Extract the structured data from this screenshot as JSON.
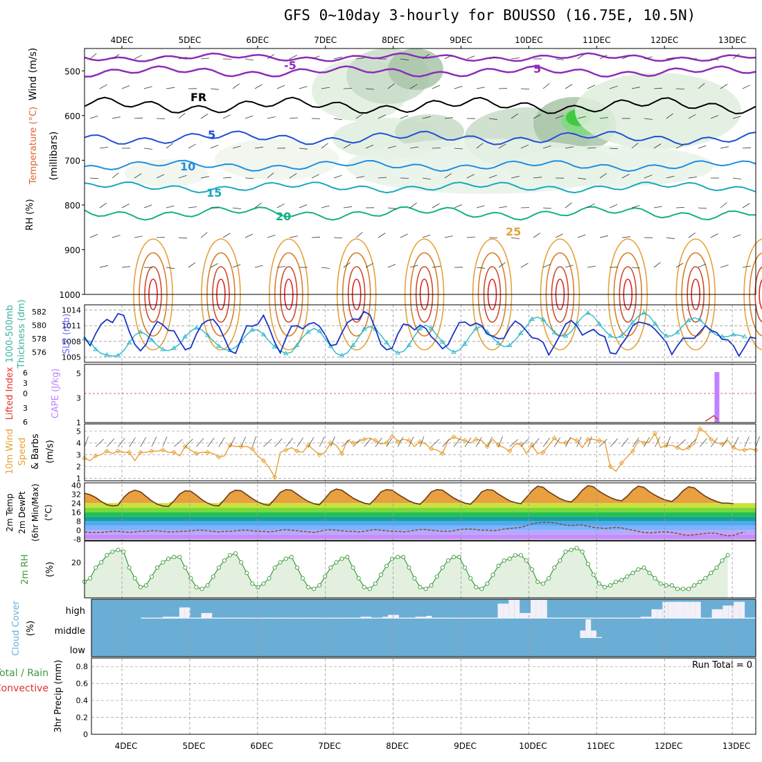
{
  "title": "GFS 0~10day 3-hourly for BOUSSO (16.75E, 10.5N)",
  "days": [
    "4DEC",
    "5DEC",
    "6DEC",
    "7DEC",
    "8DEC",
    "9DEC",
    "10DEC",
    "11DEC",
    "12DEC",
    "13DEC"
  ],
  "colors": {
    "slp": "#1b33c8",
    "thickness": "#2ab8c8",
    "wind_speed": "#e8a033",
    "rh2m": "#3a9a3a",
    "cloud_bg": "#6aaed6",
    "cape": "#c080ff",
    "lifted": "#e03030",
    "temp_fill": "#d08040"
  },
  "labels": {
    "cross_section": [
      "Wind (m/s)",
      "Temperature (°C)",
      "RH (%)",
      "(millibars)"
    ],
    "slp_panel": [
      "SLP (mb)",
      "1000-500mb",
      "Thickness (dm)"
    ],
    "cape_panel": [
      "CAPE (J/kg)",
      "Lifted Index"
    ],
    "wind_panel": [
      "10m Wind",
      "Speed",
      "& Barbs",
      "(m/s)"
    ],
    "temp_panel": [
      "2m Temp",
      "2m DewPt",
      "(6hr Min/Max)",
      "(°C)"
    ],
    "rh_panel": [
      "2m RH",
      "(%)"
    ],
    "cloud_panel": [
      "Cloud Cover",
      "(%)"
    ],
    "precip_panel": [
      "Total / Rain",
      "Convective",
      "3hr Precip (mm)"
    ],
    "run_total": "Run Total = 0",
    "cloud_levels": [
      "high",
      "middle",
      "low"
    ]
  },
  "chart_data": [
    {
      "type": "heatmap",
      "name": "cross_section",
      "y_ticks": [
        500,
        600,
        700,
        800,
        900,
        1000
      ],
      "isotherm_labels": [
        "-5",
        "5",
        "FR",
        "5",
        "10",
        "15",
        "20",
        "25"
      ]
    },
    {
      "type": "line",
      "name": "slp_thickness",
      "slp_ticks": [
        1005,
        1008,
        1011,
        1014
      ],
      "thickness_ticks": [
        576,
        578,
        580,
        582
      ],
      "slp": [
        1008.8,
        1007.2,
        1009.5,
        1011.3,
        1012.2,
        1011.6,
        1013.3,
        1013.0,
        1009.9,
        1007.4,
        1006.2,
        1007.4,
        1010.0,
        1011.8,
        1011.2,
        1010.1,
        1010.0,
        1008.1,
        1006.4,
        1006.8,
        1009.4,
        1011.3,
        1012.0,
        1012.2,
        1010.9,
        1008.6,
        1006.2,
        1005.7,
        1008.4,
        1011.0,
        1010.9,
        1011.3,
        1013.0,
        1010.6,
        1007.8,
        1005.8,
        1008.6,
        1010.9,
        1011.0,
        1010.4,
        1011.3,
        1011.6,
        1010.9,
        1009.3,
        1007.2,
        1007.4,
        1009.6,
        1011.6,
        1012.3,
        1012.2,
        1013.7,
        1013.1,
        1010.4,
        1007.4,
        1006.4,
        1006.7,
        1009.4,
        1011.3,
        1011.1,
        1010.2,
        1011.1,
        1010.5,
        1008.9,
        1007.9,
        1006.6,
        1007.4,
        1009.6,
        1011.6,
        1011.7,
        1011.0,
        1011.5,
        1011.0,
        1009.4,
        1009.0,
        1008.5,
        1008.6,
        1010.6,
        1011.9,
        1011.2,
        1010.0,
        1008.7,
        1008.5,
        1007.8,
        1005.4,
        1007.2,
        1009.2,
        1011.3,
        1012.0,
        1011.0,
        1009.2,
        1009.8,
        1010.3,
        1009.3,
        1008.9,
        1005.8,
        1005.6,
        1007.4,
        1008.9,
        1011.0,
        1011.7,
        1011.5,
        1011.2,
        1010.3,
        1009.1,
        1007.8,
        1005.5,
        1007.2,
        1008.6,
        1008.6,
        1008.6,
        1009.8,
        1011.0,
        1010.1,
        1009.7,
        1008.4,
        1008.3,
        1007.2,
        1005.2,
        1006.9,
        1008.8,
        1008.6
      ],
      "thickness": [
        578.0,
        577.5,
        576.4,
        575.8,
        575.6,
        575.4,
        575.5,
        576.2,
        577.4,
        578.5,
        579.0,
        578.6,
        577.8,
        577.0,
        576.4,
        576.2,
        576.6,
        577.2,
        578.3,
        579.1,
        579.6,
        579.3,
        578.5,
        577.7,
        576.9,
        576.4,
        576.3,
        576.7,
        577.6,
        578.6,
        579.3,
        579.3,
        578.6,
        577.6,
        576.8,
        576.2,
        575.8,
        576.0,
        577.0,
        578.2,
        579.0,
        579.5,
        579.1,
        578.0,
        576.9,
        575.8,
        575.5,
        575.9,
        577.0,
        578.2,
        579.4,
        579.8,
        579.4,
        578.5,
        577.4,
        576.4,
        575.9,
        576.1,
        577.0,
        578.4,
        579.5,
        580.0,
        579.5,
        578.5,
        577.5,
        576.5,
        576.0,
        576.3,
        577.2,
        578.5,
        579.5,
        579.8,
        579.0,
        578.1,
        577.3,
        576.8,
        577.0,
        577.8,
        578.8,
        579.8,
        580.9,
        581.2,
        580.8,
        579.8,
        578.9,
        578.4,
        578.4,
        579.0,
        580.2,
        581.2,
        581.8,
        581.3,
        580.2,
        579.2,
        578.4,
        578.1,
        578.4,
        579.3,
        580.4,
        581.3,
        581.8,
        581.3,
        580.2,
        579.1,
        578.4,
        578.4,
        578.9,
        579.9,
        580.7,
        581.1,
        580.8,
        580.0,
        579.1,
        578.5,
        578.3,
        578.3,
        578.6,
        578.5,
        578.3
      ]
    },
    {
      "type": "bar",
      "name": "cape_lifted_index",
      "cape_ticks": [
        1,
        3,
        5
      ],
      "lifted_ticks": [
        -6,
        -3,
        0,
        3,
        6
      ],
      "spike_x": 56.5,
      "spike_cape": 5.1,
      "lifted_ref": 0
    },
    {
      "type": "line",
      "name": "wind10m",
      "y_ticks": [
        1,
        2,
        3,
        4,
        5
      ],
      "values": [
        2.7,
        2.5,
        2.9,
        3.0,
        3.3,
        3.1,
        3.3,
        3.2,
        3.2,
        2.5,
        3.2,
        3.2,
        3.3,
        3.3,
        3.4,
        3.2,
        3.2,
        2.9,
        3.7,
        3.4,
        3.1,
        3.2,
        3.2,
        3.1,
        2.8,
        2.9,
        3.8,
        3.7,
        3.7,
        3.7,
        3.5,
        2.9,
        2.5,
        1.9,
        1.1,
        3.2,
        3.4,
        3.6,
        3.3,
        3.2,
        3.8,
        3.4,
        3.0,
        3.2,
        4.0,
        3.8,
        3.1,
        4.2,
        4.0,
        4.1,
        4.3,
        4.4,
        4.2,
        3.9,
        4.0,
        4.7,
        4.1,
        4.3,
        4.2,
        3.7,
        4.1,
        3.9,
        3.5,
        3.4,
        3.1,
        4.2,
        4.5,
        4.3,
        4.2,
        4.0,
        4.3,
        4.2,
        3.7,
        4.3,
        3.8,
        3.6,
        3.3,
        3.9,
        3.9,
        3.1,
        3.8,
        3.1,
        3.2,
        3.8,
        4.4,
        4.0,
        4.0,
        4.4,
        4.2,
        3.6,
        4.3,
        4.3,
        4.2,
        4.1,
        2.0,
        1.6,
        2.3,
        2.8,
        3.3,
        4.2,
        4.0,
        4.1,
        4.8,
        3.6,
        3.8,
        3.8,
        3.6,
        3.4,
        3.6,
        3.9,
        5.2,
        4.9,
        4.3,
        4.0,
        3.9,
        4.2,
        3.6,
        3.4,
        3.4,
        3.5,
        3.4
      ]
    },
    {
      "type": "area",
      "name": "temp2m",
      "y_ticks": [
        -8,
        0,
        8,
        16,
        24,
        32,
        40
      ],
      "temp": [
        32.8,
        31.5,
        29,
        25.5,
        22.5,
        21.5,
        22,
        29,
        33.5,
        35.5,
        34,
        30,
        26,
        23,
        21.5,
        21,
        26,
        32,
        35,
        34.5,
        31,
        27,
        24,
        22,
        21.5,
        27,
        33,
        35.5,
        35,
        31.5,
        28,
        25,
        23,
        22,
        27.5,
        33.5,
        36,
        35.5,
        32,
        28.5,
        25.5,
        23.5,
        22.5,
        28,
        34,
        36.5,
        35.5,
        32,
        28.5,
        26,
        24,
        23,
        28,
        34,
        36,
        35.5,
        32,
        29,
        26,
        24,
        23,
        28,
        34,
        36,
        35.5,
        32,
        28.5,
        26,
        24,
        23,
        28,
        34,
        36,
        35.5,
        32,
        29,
        26,
        24.5,
        23.5,
        29,
        35,
        39,
        38,
        34,
        31,
        28,
        26,
        25,
        29.5,
        35.5,
        39.5,
        38.5,
        34.5,
        31.5,
        29,
        27,
        26,
        30,
        35.5,
        39,
        38,
        34,
        31,
        28.5,
        26.5,
        25.5,
        29.5,
        35,
        38.5,
        37.5,
        33.5,
        30,
        27.5,
        25.5,
        24,
        24,
        23.5
      ],
      "dewpoint": [
        -1.5,
        -2,
        -2,
        -2,
        -1.5,
        -1,
        -1,
        -1.5,
        -2,
        -1.5,
        -1,
        -1,
        -0.5,
        -0.5,
        -1,
        -1.5,
        -1.5,
        -1,
        -1,
        -0.5,
        0,
        0,
        -0.5,
        -1,
        -1.5,
        -1,
        -1,
        -0.5,
        0,
        0,
        -0.5,
        -1,
        -1,
        -1.5,
        -1,
        0,
        0.5,
        0,
        -0.5,
        -1,
        -1.5,
        -2,
        -1,
        0,
        0.5,
        0,
        -0.5,
        -1,
        -1,
        -1.5,
        -1,
        0,
        0.5,
        0,
        -0.5,
        -1,
        -1,
        -1.5,
        -1,
        0,
        0.5,
        0.5,
        0,
        -0.5,
        -1,
        -1,
        -0.5,
        0.5,
        1,
        1,
        0.5,
        0,
        0,
        -0.5,
        0,
        1,
        1.5,
        2,
        2.5,
        4,
        5.5,
        6.5,
        7,
        7,
        6.5,
        5.5,
        4.5,
        4,
        4.5,
        4.5,
        3.5,
        2.5,
        2,
        1.5,
        2,
        2.5,
        2,
        1,
        0,
        -1,
        -2,
        -2.5,
        -2,
        -1.5,
        -1.5,
        -2,
        -3,
        -4,
        -4.5,
        -4,
        -3.5,
        -3,
        -2.5,
        -3,
        -4,
        -5,
        -4.5,
        -3,
        -1.5
      ]
    },
    {
      "type": "line",
      "name": "rh2m",
      "y_ticks": [
        20
      ],
      "values": [
        9,
        11,
        17,
        20,
        24,
        26,
        27,
        26,
        17,
        11,
        6,
        7,
        12,
        17,
        20,
        22,
        23,
        23,
        17,
        11,
        6,
        5,
        7,
        12,
        17,
        21,
        24,
        25,
        20,
        14,
        8,
        6,
        8,
        11,
        17,
        20,
        22,
        23,
        17,
        11,
        6,
        5,
        7,
        12,
        17,
        20,
        22,
        23,
        17,
        11,
        6,
        5,
        8,
        13,
        18,
        22,
        23,
        23,
        17,
        11,
        6,
        5,
        7,
        12,
        17,
        21,
        23,
        23,
        17,
        11,
        6,
        5,
        8,
        13,
        18,
        21,
        22,
        24,
        24,
        21,
        16,
        9,
        8,
        11,
        17,
        21,
        26,
        27,
        28,
        26,
        19,
        13,
        8,
        6,
        7,
        9,
        10,
        12,
        14,
        16,
        17,
        14,
        11,
        8,
        7,
        7,
        5,
        5,
        5,
        7,
        9,
        11,
        14,
        17,
        21,
        24
      ]
    },
    {
      "type": "bar",
      "name": "cloud_cover",
      "levels": [
        "high",
        "middle",
        "low"
      ],
      "high": [
        0,
        0,
        0,
        0,
        0,
        0,
        0,
        0,
        0,
        5,
        5,
        5,
        5,
        10,
        10,
        10,
        60,
        60,
        5,
        5,
        30,
        30,
        5,
        5,
        5,
        5,
        5,
        5,
        5,
        5,
        5,
        5,
        5,
        5,
        5,
        5,
        5,
        5,
        5,
        5,
        5,
        5,
        5,
        5,
        5,
        5,
        5,
        5,
        5,
        10,
        10,
        5,
        5,
        10,
        20,
        20,
        5,
        5,
        5,
        10,
        10,
        15,
        5,
        5,
        5,
        5,
        5,
        5,
        5,
        5,
        5,
        5,
        5,
        5,
        80,
        80,
        100,
        100,
        30,
        30,
        100,
        100,
        100,
        5,
        5,
        5,
        5,
        5,
        5,
        5,
        5,
        5,
        5,
        5,
        5,
        5,
        5,
        5,
        5,
        5,
        10,
        10,
        50,
        50,
        90,
        90,
        90,
        90,
        90,
        90,
        90,
        5,
        5,
        50,
        50,
        70,
        70,
        90,
        90,
        5,
        5,
        5,
        5,
        5
      ],
      "middle": [
        0,
        0,
        0,
        0,
        0,
        0,
        0,
        0,
        0,
        0,
        0,
        0,
        0,
        0,
        0,
        0,
        0,
        0,
        0,
        0,
        0,
        0,
        0,
        0,
        0,
        0,
        0,
        0,
        0,
        0,
        0,
        0,
        0,
        0,
        0,
        0,
        0,
        0,
        0,
        0,
        0,
        0,
        0,
        0,
        0,
        0,
        0,
        0,
        0,
        0,
        0,
        0,
        0,
        0,
        0,
        0,
        0,
        0,
        0,
        0,
        0,
        0,
        0,
        0,
        0,
        0,
        0,
        0,
        0,
        0,
        0,
        0,
        0,
        0,
        0,
        0,
        0,
        0,
        0,
        0,
        0,
        0,
        0,
        0,
        0,
        0,
        0,
        0,
        0,
        40,
        100,
        40,
        5,
        0,
        0,
        0,
        0,
        0,
        0,
        0,
        0,
        0,
        0,
        0,
        0,
        0,
        0,
        0,
        0,
        0,
        0,
        0,
        0,
        0,
        0,
        0,
        0,
        0,
        0,
        0,
        0
      ],
      "low": [
        0,
        0,
        0,
        0,
        0,
        0,
        0,
        0,
        0,
        0,
        0,
        0,
        0,
        0,
        0,
        0,
        0,
        0,
        0,
        0,
        0,
        0,
        0,
        0,
        0,
        0,
        0,
        0,
        0,
        0,
        0,
        0,
        0,
        0,
        0,
        0,
        0,
        0,
        0,
        0,
        0,
        0,
        0,
        0,
        0,
        0,
        0,
        0,
        0,
        0,
        0,
        0,
        0,
        0,
        0,
        0,
        0,
        0,
        0,
        0,
        0,
        0,
        0,
        0,
        0,
        0,
        0,
        0,
        0,
        0,
        0,
        0,
        0,
        0,
        0,
        0,
        0,
        0,
        0,
        0,
        0,
        0,
        0,
        0,
        0,
        0,
        0,
        0,
        0,
        0,
        0,
        0,
        0,
        0,
        0,
        0,
        0,
        0,
        0,
        0,
        0,
        0,
        0,
        0,
        0,
        0,
        0,
        0,
        0,
        0,
        0,
        0,
        0,
        0,
        0,
        0,
        0,
        0,
        0,
        0,
        0
      ]
    },
    {
      "type": "line",
      "name": "precip3h",
      "y_ticks": [
        0,
        0.2,
        0.4,
        0.6,
        0.8
      ],
      "values": []
    }
  ]
}
